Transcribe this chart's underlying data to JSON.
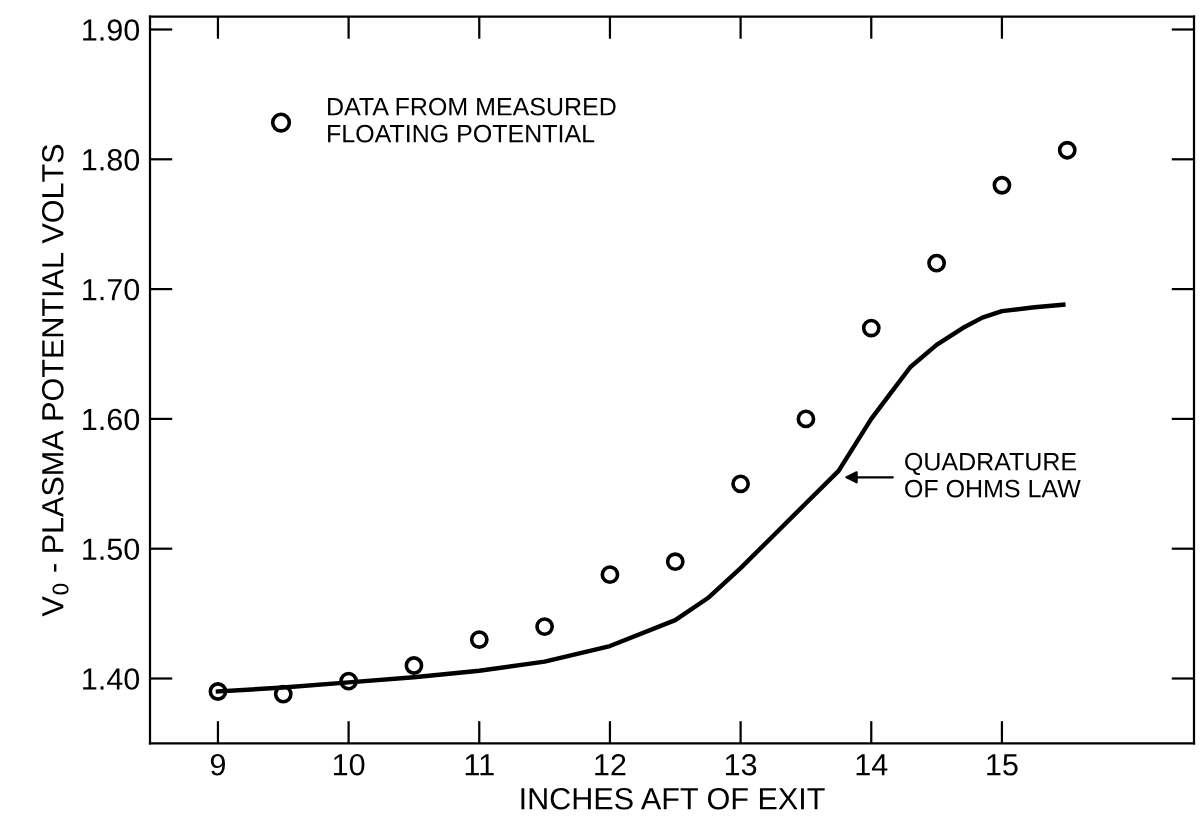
{
  "chart_data": {
    "type": "scatter",
    "xlabel": "INCHES AFT OF EXIT",
    "ylabel": "V$_{0}$ - PLASMA POTENTIAL VOLTS",
    "xlim": [
      8.48,
      16.47
    ],
    "ylim": [
      1.35,
      1.91
    ],
    "xticks": [
      9,
      10,
      11,
      12,
      13,
      14,
      15
    ],
    "yticks": [
      {
        "value": 1.4,
        "label": "1.40"
      },
      {
        "value": 1.5,
        "label": "1.50"
      },
      {
        "value": 1.6,
        "label": "1.60"
      },
      {
        "value": 1.7,
        "label": "1.70"
      },
      {
        "value": 1.8,
        "label": "1.80"
      },
      {
        "value": 1.9,
        "label": "1.90"
      }
    ],
    "series": [
      {
        "name": "DATA FROM MEASURED\nFLOATING POTENTIAL",
        "marker": "circle",
        "color": "#000000",
        "x": [
          9,
          9.5,
          10,
          10.5,
          11,
          11.5,
          12,
          12.5,
          13,
          13.5,
          14,
          14.5,
          15,
          15.5
        ],
        "values": [
          1.39,
          1.388,
          1.398,
          1.41,
          1.43,
          1.44,
          1.48,
          1.49,
          1.55,
          1.6,
          1.67,
          1.72,
          1.78,
          1.807
        ]
      },
      {
        "type": "line",
        "marker": "none",
        "line_style": "solid",
        "color": "#000000",
        "x": [
          9,
          9.5,
          10,
          10.5,
          11,
          11.5,
          12,
          12.5,
          12.75,
          13,
          13.25,
          13.5,
          13.75,
          14,
          14.15,
          14.3,
          14.5,
          14.7,
          14.85,
          15,
          15.25,
          15.47
        ],
        "values": [
          1.39,
          1.393,
          1.397,
          1.401,
          1.406,
          1.413,
          1.425,
          1.445,
          1.462,
          1.485,
          1.51,
          1.535,
          1.56,
          1.6,
          1.62,
          1.64,
          1.657,
          1.67,
          1.678,
          1.683,
          1.686,
          1.688
        ]
      }
    ],
    "annotations": [
      {
        "text": "QUADRATURE\nOF OHMS LAW",
        "x": 13.75,
        "y": 1.555
      }
    ],
    "legend": "top left",
    "grid": false
  }
}
